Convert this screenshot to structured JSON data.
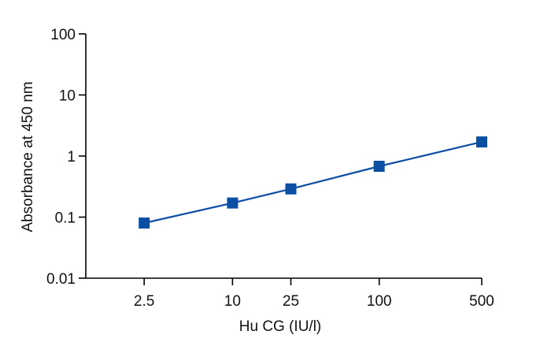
{
  "chart_data": {
    "type": "line",
    "title": "",
    "xlabel": "Hu CG (IU/l)",
    "ylabel": "Absorbance at 450 nm",
    "x_scale": "log",
    "y_scale": "log",
    "xlim": [
      1,
      500
    ],
    "ylim": [
      0.01,
      100
    ],
    "x_ticks": [
      2.5,
      10,
      25,
      100,
      500
    ],
    "x_tick_labels": [
      "2.5",
      "10",
      "25",
      "100",
      "500"
    ],
    "y_ticks": [
      0.01,
      0.1,
      1,
      10,
      100
    ],
    "y_tick_labels": [
      "0.01",
      "0.1",
      "1",
      "10",
      "100"
    ],
    "grid": false,
    "legend": "none",
    "series": [
      {
        "x": [
          2.5,
          10,
          25,
          100,
          500
        ],
        "y": [
          0.08,
          0.17,
          0.29,
          0.68,
          1.7
        ],
        "color": "#0a4fa3",
        "marker": "square"
      }
    ]
  }
}
